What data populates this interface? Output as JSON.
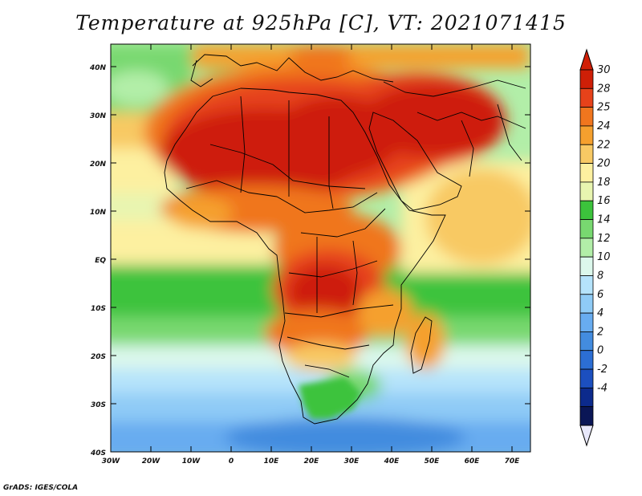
{
  "title": "Temperature at 925hPa [C], VT: 2021071415",
  "footer": "GrADS: IGES/COLA",
  "map": {
    "lat_labels": [
      "40N",
      "30N",
      "20N",
      "10N",
      "EQ",
      "10S",
      "20S",
      "30S",
      "40S"
    ],
    "lon_labels": [
      "30W",
      "20W",
      "10W",
      "0",
      "10E",
      "20E",
      "30E",
      "40E",
      "50E",
      "60E",
      "70E"
    ]
  },
  "colorbar": {
    "labels": [
      "30",
      "28",
      "25",
      "24",
      "22",
      "20",
      "18",
      "16",
      "14",
      "12",
      "10",
      "8",
      "6",
      "4",
      "2",
      "0",
      "-2",
      "-4"
    ],
    "colors": [
      "#ce1f07",
      "#e6421a",
      "#f0761e",
      "#f5a02e",
      "#f8c964",
      "#fdf0a0",
      "#e8f5b0",
      "#3cc33c",
      "#78d870",
      "#b2eea8",
      "#dcf8ec",
      "#b5e3fb",
      "#8fcbf6",
      "#68acf0",
      "#438cdf",
      "#2c6ed4",
      "#1c4fbf",
      "#0c2a8c",
      "#0a1656"
    ],
    "over_color": "#d01f07",
    "under_color": "#e8e8fb"
  }
}
